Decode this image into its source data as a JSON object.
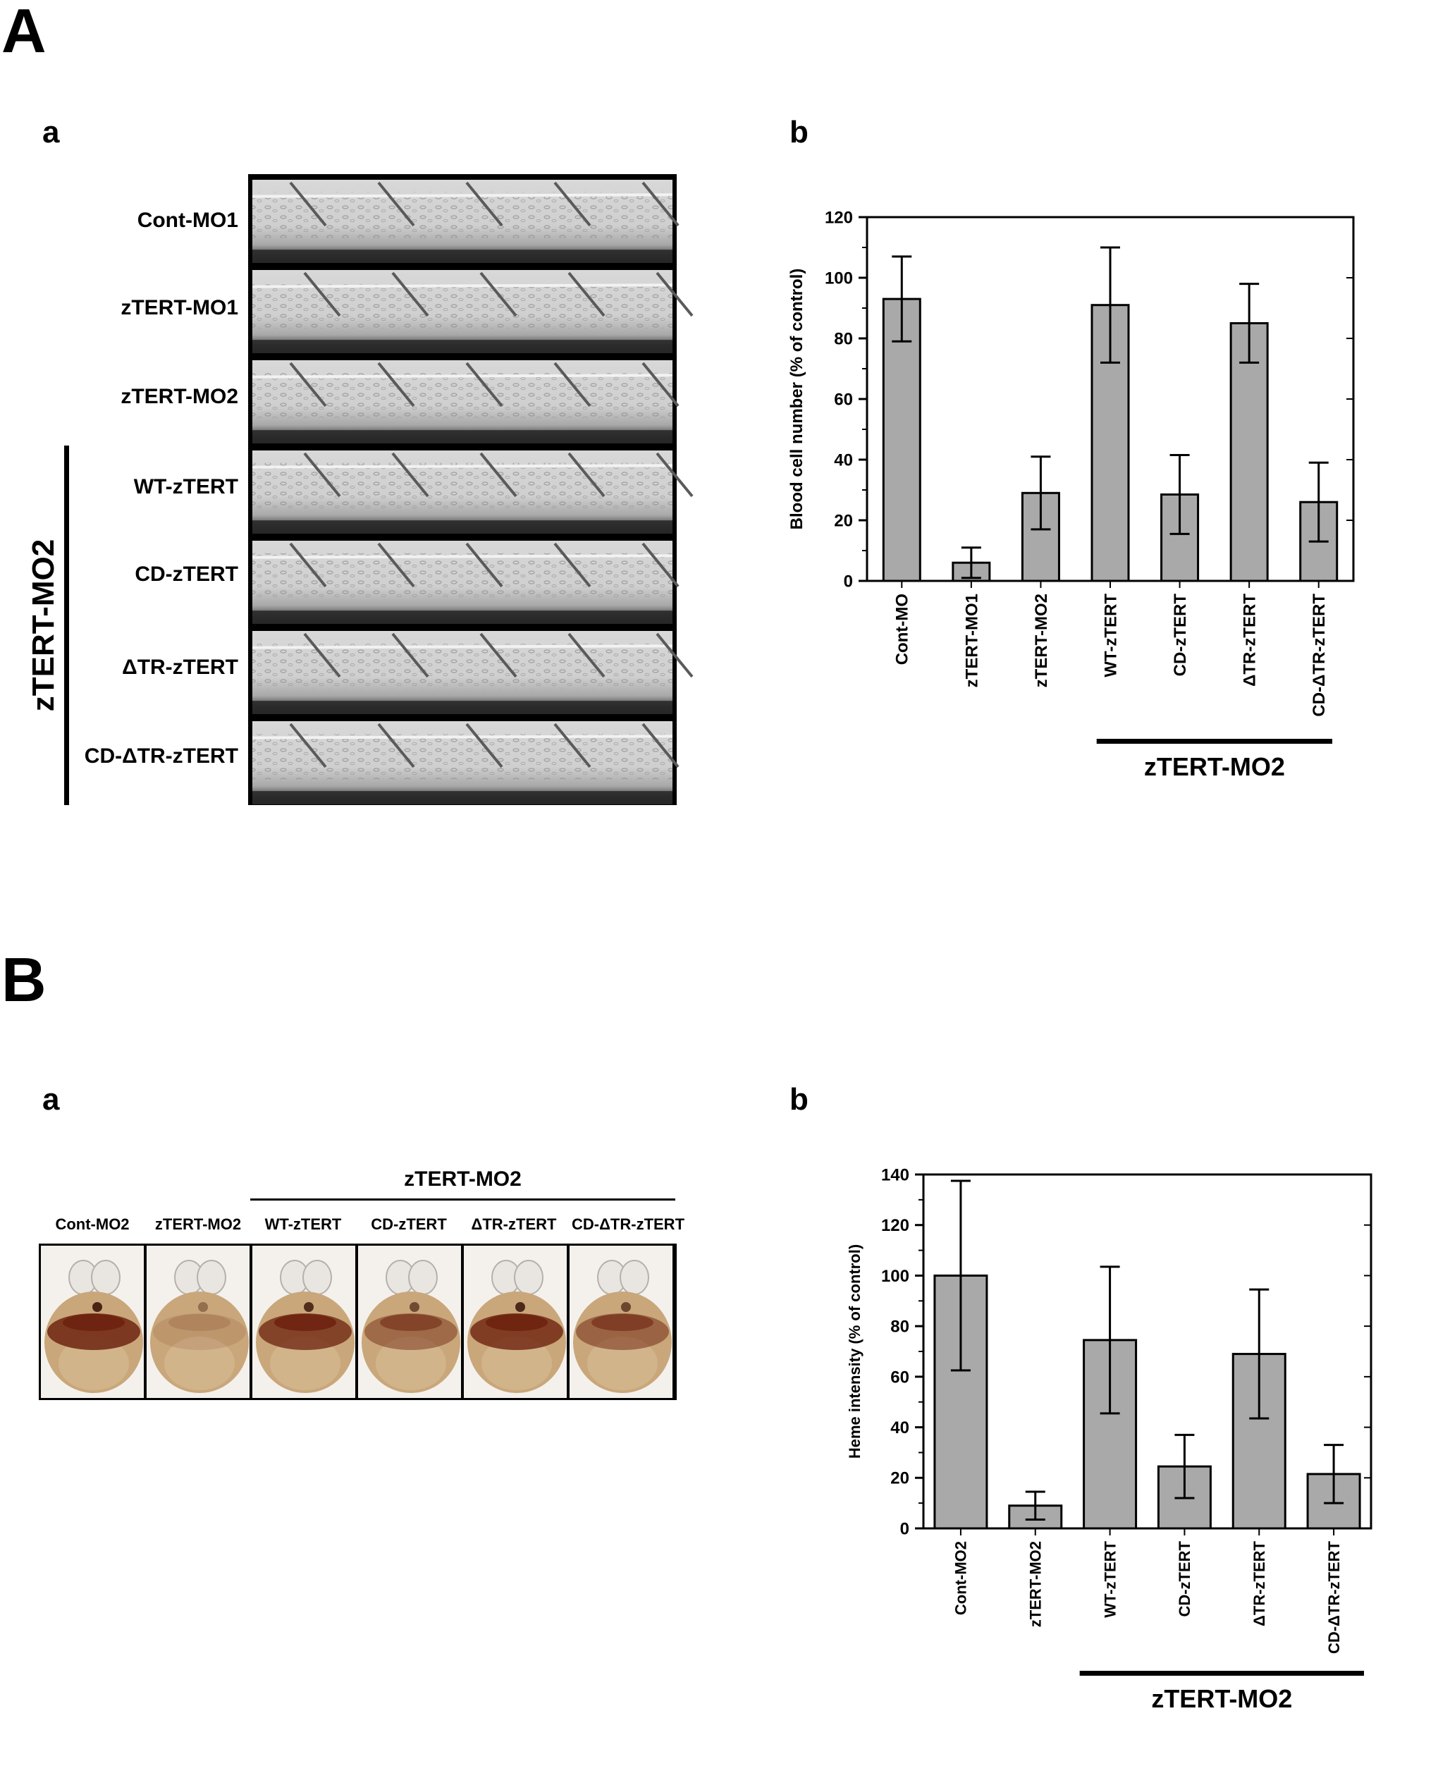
{
  "panels": {
    "A": {
      "letter": "A",
      "a": {
        "letter": "a",
        "rows": [
          "Cont-MO1",
          "zTERT-MO1",
          "zTERT-MO2",
          "WT-zTERT",
          "CD-zTERT",
          "ΔTR-zTERT",
          "CD-ΔTR-zTERT"
        ],
        "group_label": "zTERT-MO2"
      },
      "b": {
        "letter": "b",
        "group_label": "zTERT-MO2"
      }
    },
    "B": {
      "letter": "B",
      "a": {
        "letter": "a",
        "group_label": "zTERT-MO2",
        "labels": [
          "Cont-MO2",
          "zTERT-MO2",
          "WT-zTERT",
          "CD-zTERT",
          "ΔTR-zTERT",
          "CD-ΔTR-zTERT"
        ],
        "yolk_color": "#c9a77a",
        "stain_color": "#6e2410"
      },
      "b": {
        "letter": "b",
        "group_label": "zTERT-MO2"
      }
    }
  },
  "chart_data": [
    {
      "id": "A-b",
      "type": "bar",
      "categories": [
        "Cont-MO",
        "zTERT-MO1",
        "zTERT-MO2",
        "WT-zTERT",
        "CD-zTERT",
        "ΔTR-zTERT",
        "CD-ΔTR-zTERT"
      ],
      "values": [
        93,
        6,
        29,
        91,
        28.5,
        85,
        26
      ],
      "errors": [
        14,
        5,
        12,
        19,
        13,
        13,
        13
      ],
      "ylabel": "Blood cell number (% of control)",
      "ylim": [
        0,
        120
      ],
      "yticks": [
        0,
        20,
        40,
        60,
        80,
        100,
        120
      ],
      "bar_color": "#a9a9a9"
    },
    {
      "id": "B-b",
      "type": "bar",
      "categories": [
        "Cont-MO2",
        "zTERT-MO2",
        "WT-zTERT",
        "CD-zTERT",
        "ΔTR-zTERT",
        "CD-ΔTR-zTERT"
      ],
      "values": [
        100,
        9,
        74.5,
        24.5,
        69,
        21.5
      ],
      "errors": [
        37.5,
        5.5,
        29,
        12.5,
        25.5,
        11.5
      ],
      "ylabel": "Heme intensity (% of control)",
      "ylim": [
        0,
        140
      ],
      "yticks": [
        0,
        20,
        40,
        60,
        80,
        100,
        120,
        140
      ],
      "bar_color": "#a9a9a9"
    }
  ]
}
